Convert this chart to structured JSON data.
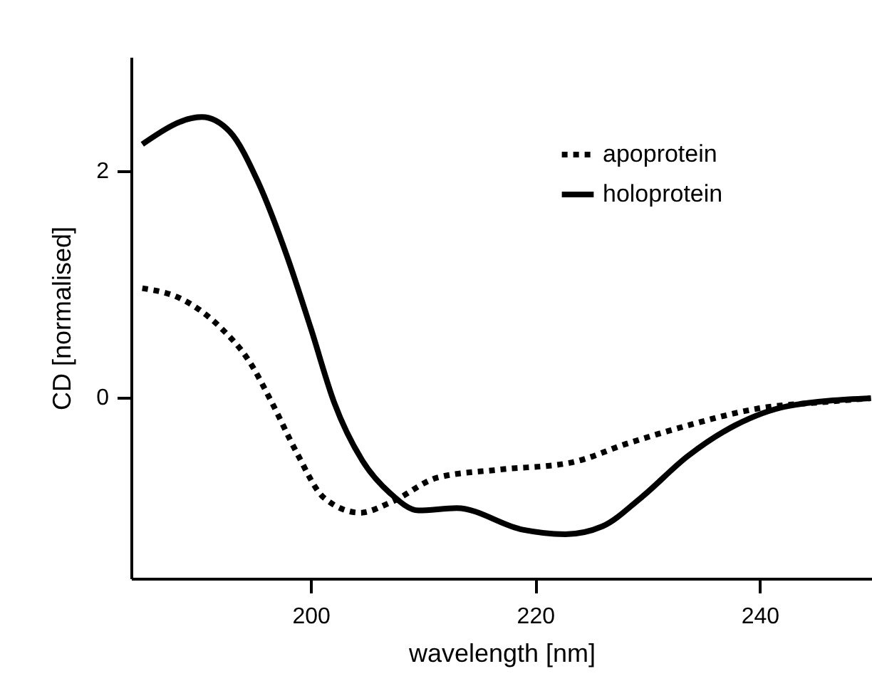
{
  "chart_data": {
    "type": "line",
    "xlabel": "wavelength [nm]",
    "ylabel": "CD [normalised]",
    "xlim": [
      184,
      250
    ],
    "ylim": [
      -1.6,
      3
    ],
    "xticks": [
      200,
      220,
      240
    ],
    "yticks": [
      0,
      2
    ],
    "grid": false,
    "legend": "top right",
    "marker": "none",
    "series": [
      {
        "name": "apoprotein",
        "color": "#000000",
        "line_style": "dotted",
        "x": [
          185,
          188.6,
          192,
          194.5,
          196.6,
          198.7,
          201.2,
          204.4,
          207.1,
          211.3,
          216.8,
          223.1,
          228.2,
          233.6,
          239.9,
          246.2,
          249.9
        ],
        "values": [
          0.96,
          0.86,
          0.61,
          0.32,
          -0.06,
          -0.48,
          -0.89,
          -1.02,
          -0.93,
          -0.71,
          -0.64,
          -0.58,
          -0.41,
          -0.25,
          -0.1,
          -0.04,
          -0.01
        ]
      },
      {
        "name": "holoprotein",
        "color": "#000000",
        "line_style": "solid",
        "x": [
          185,
          190.3,
          192.8,
          195.3,
          197.9,
          200,
          202.1,
          204.6,
          207.1,
          209.6,
          213,
          218.9,
          222.7,
          226,
          229.4,
          233.6,
          237.8,
          242.5,
          249.9
        ],
        "values": [
          2.23,
          2.47,
          2.34,
          1.9,
          1.24,
          0.61,
          -0.05,
          -0.56,
          -0.85,
          -1.0,
          -0.98,
          -1.17,
          -1.21,
          -1.14,
          -0.89,
          -0.52,
          -0.25,
          -0.08,
          -0.01
        ]
      }
    ]
  }
}
